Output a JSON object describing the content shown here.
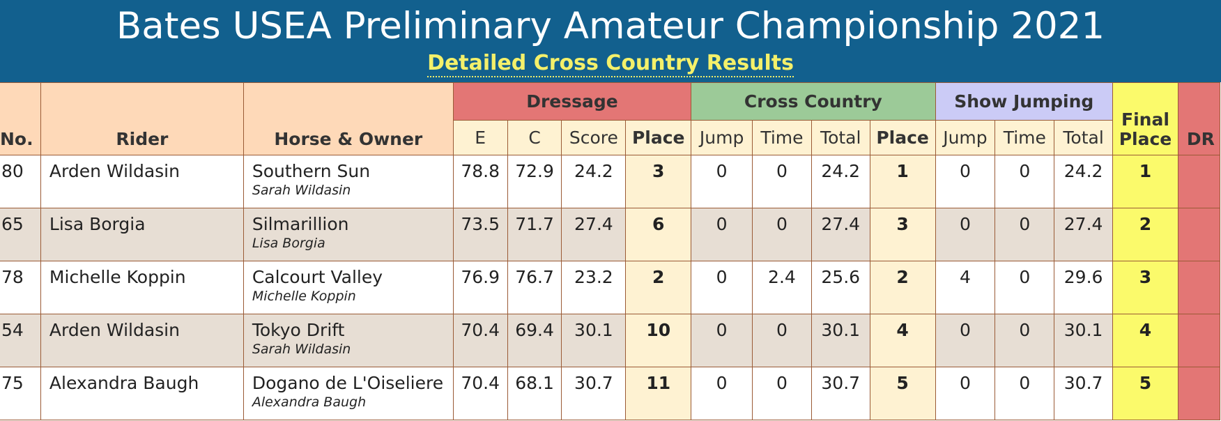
{
  "header": {
    "title": "Bates USEA Preliminary Amateur Championship 2021",
    "subtitle": "Detailed Cross Country Results"
  },
  "columns": {
    "no": "No.",
    "rider": "Rider",
    "horse_owner": "Horse & Owner",
    "dressage": "Dressage",
    "cross_country": "Cross Country",
    "show_jumping": "Show Jumping",
    "final_place": "Final Place",
    "dr": "DR",
    "e": "E",
    "c": "C",
    "score": "Score",
    "place": "Place",
    "jump": "Jump",
    "time": "Time",
    "total": "Total"
  },
  "rows": [
    {
      "no": "80",
      "rider": "Arden Wildasin",
      "horse": "Southern Sun",
      "owner": "Sarah Wildasin",
      "e": "78.8",
      "c": "72.9",
      "score": "24.2",
      "d_place": "3",
      "xc_jump": "0",
      "xc_time": "0",
      "xc_total": "24.2",
      "xc_place": "1",
      "sj_jump": "0",
      "sj_time": "0",
      "sj_total": "24.2",
      "final": "1",
      "dr": ""
    },
    {
      "no": "65",
      "rider": "Lisa Borgia",
      "horse": "Silmarillion",
      "owner": "Lisa Borgia",
      "e": "73.5",
      "c": "71.7",
      "score": "27.4",
      "d_place": "6",
      "xc_jump": "0",
      "xc_time": "0",
      "xc_total": "27.4",
      "xc_place": "3",
      "sj_jump": "0",
      "sj_time": "0",
      "sj_total": "27.4",
      "final": "2",
      "dr": ""
    },
    {
      "no": "78",
      "rider": "Michelle Koppin",
      "horse": "Calcourt Valley",
      "owner": "Michelle Koppin",
      "e": "76.9",
      "c": "76.7",
      "score": "23.2",
      "d_place": "2",
      "xc_jump": "0",
      "xc_time": "2.4",
      "xc_total": "25.6",
      "xc_place": "2",
      "sj_jump": "4",
      "sj_time": "0",
      "sj_total": "29.6",
      "final": "3",
      "dr": ""
    },
    {
      "no": "54",
      "rider": "Arden Wildasin",
      "horse": "Tokyo Drift",
      "owner": "Sarah Wildasin",
      "e": "70.4",
      "c": "69.4",
      "score": "30.1",
      "d_place": "10",
      "xc_jump": "0",
      "xc_time": "0",
      "xc_total": "30.1",
      "xc_place": "4",
      "sj_jump": "0",
      "sj_time": "0",
      "sj_total": "30.1",
      "final": "4",
      "dr": ""
    },
    {
      "no": "75",
      "rider": "Alexandra Baugh",
      "horse": "Dogano de L'Oiseliere",
      "owner": "Alexandra Baugh",
      "e": "70.4",
      "c": "68.1",
      "score": "30.7",
      "d_place": "11",
      "xc_jump": "0",
      "xc_time": "0",
      "xc_total": "30.7",
      "xc_place": "5",
      "sj_jump": "0",
      "sj_time": "0",
      "sj_total": "30.7",
      "final": "5",
      "dr": ""
    }
  ]
}
